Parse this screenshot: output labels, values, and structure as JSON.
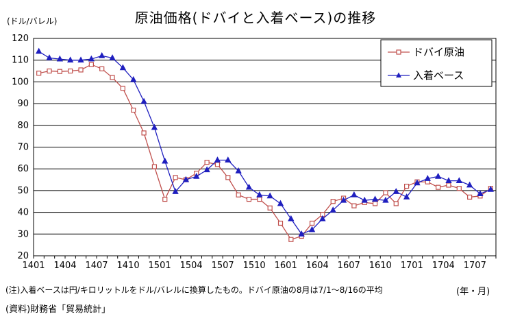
{
  "chart_data": {
    "type": "line",
    "title": "原油価格(ドバイと入着ベース)の推移",
    "ylabel": "(ドル/バレル)",
    "xlabel": "(年・月)",
    "ylim": [
      20,
      120
    ],
    "yticks": [
      20,
      30,
      40,
      50,
      60,
      70,
      80,
      90,
      100,
      110,
      120
    ],
    "xtick_labels": [
      "1401",
      "1404",
      "1407",
      "1410",
      "1501",
      "1504",
      "1507",
      "1510",
      "1601",
      "1604",
      "1607",
      "1610",
      "1701",
      "1704",
      "1707"
    ],
    "x": [
      "1401",
      "1402",
      "1403",
      "1404",
      "1405",
      "1406",
      "1407",
      "1408",
      "1409",
      "1410",
      "1411",
      "1412",
      "1501",
      "1502",
      "1503",
      "1504",
      "1505",
      "1506",
      "1507",
      "1508",
      "1509",
      "1510",
      "1511",
      "1512",
      "1601",
      "1602",
      "1603",
      "1604",
      "1605",
      "1606",
      "1607",
      "1608",
      "1609",
      "1610",
      "1611",
      "1612",
      "1701",
      "1702",
      "1703",
      "1704",
      "1705",
      "1706",
      "1707",
      "1708"
    ],
    "grid": true,
    "legend_position": "top-right",
    "series": [
      {
        "name": "ドバイ原油",
        "color": "#c0504d",
        "marker": "square-open",
        "values": [
          104.0,
          105.0,
          104.8,
          105.0,
          105.5,
          108.0,
          106.0,
          102.0,
          97.0,
          87.0,
          76.5,
          61.0,
          46.0,
          56.0,
          55.0,
          58.0,
          63.0,
          62.0,
          56.0,
          48.0,
          46.0,
          46.0,
          42.0,
          35.0,
          27.5,
          29.0,
          35.0,
          39.0,
          45.0,
          46.5,
          43.0,
          44.5,
          44.0,
          49.0,
          44.0,
          52.0,
          54.0,
          54.0,
          51.5,
          52.5,
          51.0,
          47.0,
          47.5,
          51.0
        ]
      },
      {
        "name": "入着ベース",
        "color": "#1f1fbf",
        "marker": "triangle-filled",
        "values": [
          114.0,
          111.0,
          110.5,
          110.0,
          110.0,
          110.5,
          112.0,
          111.0,
          106.5,
          101.0,
          91.0,
          79.0,
          63.5,
          49.5,
          55.0,
          56.5,
          59.5,
          64.0,
          64.0,
          59.0,
          51.5,
          48.0,
          47.5,
          44.0,
          37.0,
          30.0,
          32.0,
          37.0,
          41.0,
          45.5,
          48.0,
          45.5,
          46.0,
          45.5,
          49.5,
          47.0,
          53.5,
          55.5,
          56.5,
          54.5,
          54.5,
          52.5,
          48.5,
          50.5
        ]
      }
    ]
  },
  "notes": {
    "note": "(注)入着ベースは円/キロリットルをドル/バレルに換算したもの。ドバイ原油の8月は7/1～8/16の平均",
    "source": "(資料)財務省「貿易統計」"
  }
}
